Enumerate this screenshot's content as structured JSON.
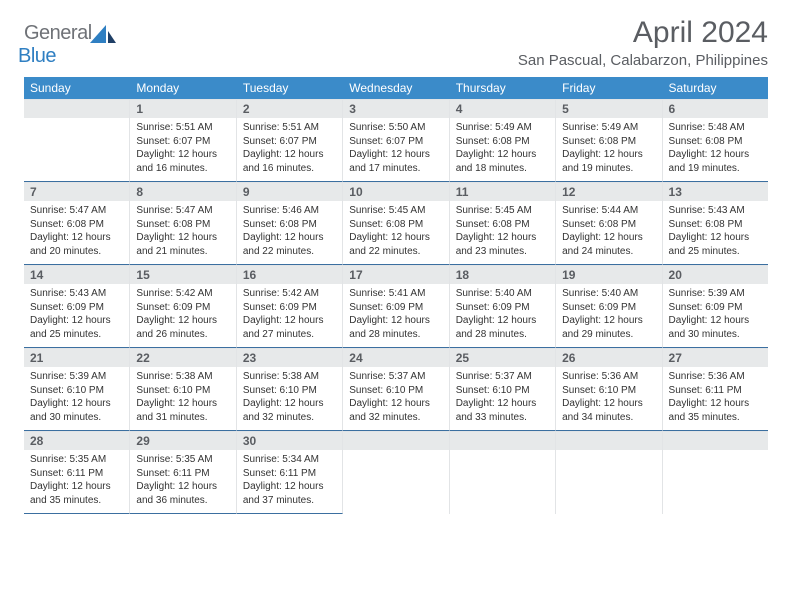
{
  "logo": {
    "word1": "General",
    "word2": "Blue"
  },
  "title": "April 2024",
  "location": "San Pascual, Calabarzon, Philippines",
  "colors": {
    "header_bg": "#3b8bc9",
    "header_text": "#ffffff",
    "daynum_bg": "#e7e9ea",
    "daynum_text": "#5a5d62",
    "body_text": "#333333",
    "rule": "#3b6fa0",
    "logo_gray": "#6f7277",
    "logo_blue": "#2f7fc2"
  },
  "day_headers": [
    "Sunday",
    "Monday",
    "Tuesday",
    "Wednesday",
    "Thursday",
    "Friday",
    "Saturday"
  ],
  "weeks": [
    [
      {
        "n": "",
        "sr": "",
        "ss": "",
        "dl": ""
      },
      {
        "n": "1",
        "sr": "5:51 AM",
        "ss": "6:07 PM",
        "dl": "12 hours and 16 minutes."
      },
      {
        "n": "2",
        "sr": "5:51 AM",
        "ss": "6:07 PM",
        "dl": "12 hours and 16 minutes."
      },
      {
        "n": "3",
        "sr": "5:50 AM",
        "ss": "6:07 PM",
        "dl": "12 hours and 17 minutes."
      },
      {
        "n": "4",
        "sr": "5:49 AM",
        "ss": "6:08 PM",
        "dl": "12 hours and 18 minutes."
      },
      {
        "n": "5",
        "sr": "5:49 AM",
        "ss": "6:08 PM",
        "dl": "12 hours and 19 minutes."
      },
      {
        "n": "6",
        "sr": "5:48 AM",
        "ss": "6:08 PM",
        "dl": "12 hours and 19 minutes."
      }
    ],
    [
      {
        "n": "7",
        "sr": "5:47 AM",
        "ss": "6:08 PM",
        "dl": "12 hours and 20 minutes."
      },
      {
        "n": "8",
        "sr": "5:47 AM",
        "ss": "6:08 PM",
        "dl": "12 hours and 21 minutes."
      },
      {
        "n": "9",
        "sr": "5:46 AM",
        "ss": "6:08 PM",
        "dl": "12 hours and 22 minutes."
      },
      {
        "n": "10",
        "sr": "5:45 AM",
        "ss": "6:08 PM",
        "dl": "12 hours and 22 minutes."
      },
      {
        "n": "11",
        "sr": "5:45 AM",
        "ss": "6:08 PM",
        "dl": "12 hours and 23 minutes."
      },
      {
        "n": "12",
        "sr": "5:44 AM",
        "ss": "6:08 PM",
        "dl": "12 hours and 24 minutes."
      },
      {
        "n": "13",
        "sr": "5:43 AM",
        "ss": "6:08 PM",
        "dl": "12 hours and 25 minutes."
      }
    ],
    [
      {
        "n": "14",
        "sr": "5:43 AM",
        "ss": "6:09 PM",
        "dl": "12 hours and 25 minutes."
      },
      {
        "n": "15",
        "sr": "5:42 AM",
        "ss": "6:09 PM",
        "dl": "12 hours and 26 minutes."
      },
      {
        "n": "16",
        "sr": "5:42 AM",
        "ss": "6:09 PM",
        "dl": "12 hours and 27 minutes."
      },
      {
        "n": "17",
        "sr": "5:41 AM",
        "ss": "6:09 PM",
        "dl": "12 hours and 28 minutes."
      },
      {
        "n": "18",
        "sr": "5:40 AM",
        "ss": "6:09 PM",
        "dl": "12 hours and 28 minutes."
      },
      {
        "n": "19",
        "sr": "5:40 AM",
        "ss": "6:09 PM",
        "dl": "12 hours and 29 minutes."
      },
      {
        "n": "20",
        "sr": "5:39 AM",
        "ss": "6:09 PM",
        "dl": "12 hours and 30 minutes."
      }
    ],
    [
      {
        "n": "21",
        "sr": "5:39 AM",
        "ss": "6:10 PM",
        "dl": "12 hours and 30 minutes."
      },
      {
        "n": "22",
        "sr": "5:38 AM",
        "ss": "6:10 PM",
        "dl": "12 hours and 31 minutes."
      },
      {
        "n": "23",
        "sr": "5:38 AM",
        "ss": "6:10 PM",
        "dl": "12 hours and 32 minutes."
      },
      {
        "n": "24",
        "sr": "5:37 AM",
        "ss": "6:10 PM",
        "dl": "12 hours and 32 minutes."
      },
      {
        "n": "25",
        "sr": "5:37 AM",
        "ss": "6:10 PM",
        "dl": "12 hours and 33 minutes."
      },
      {
        "n": "26",
        "sr": "5:36 AM",
        "ss": "6:10 PM",
        "dl": "12 hours and 34 minutes."
      },
      {
        "n": "27",
        "sr": "5:36 AM",
        "ss": "6:11 PM",
        "dl": "12 hours and 35 minutes."
      }
    ],
    [
      {
        "n": "28",
        "sr": "5:35 AM",
        "ss": "6:11 PM",
        "dl": "12 hours and 35 minutes."
      },
      {
        "n": "29",
        "sr": "5:35 AM",
        "ss": "6:11 PM",
        "dl": "12 hours and 36 minutes."
      },
      {
        "n": "30",
        "sr": "5:34 AM",
        "ss": "6:11 PM",
        "dl": "12 hours and 37 minutes."
      },
      {
        "n": "",
        "sr": "",
        "ss": "",
        "dl": ""
      },
      {
        "n": "",
        "sr": "",
        "ss": "",
        "dl": ""
      },
      {
        "n": "",
        "sr": "",
        "ss": "",
        "dl": ""
      },
      {
        "n": "",
        "sr": "",
        "ss": "",
        "dl": ""
      }
    ]
  ],
  "labels": {
    "sunrise": "Sunrise:",
    "sunset": "Sunset:",
    "daylight": "Daylight:"
  }
}
